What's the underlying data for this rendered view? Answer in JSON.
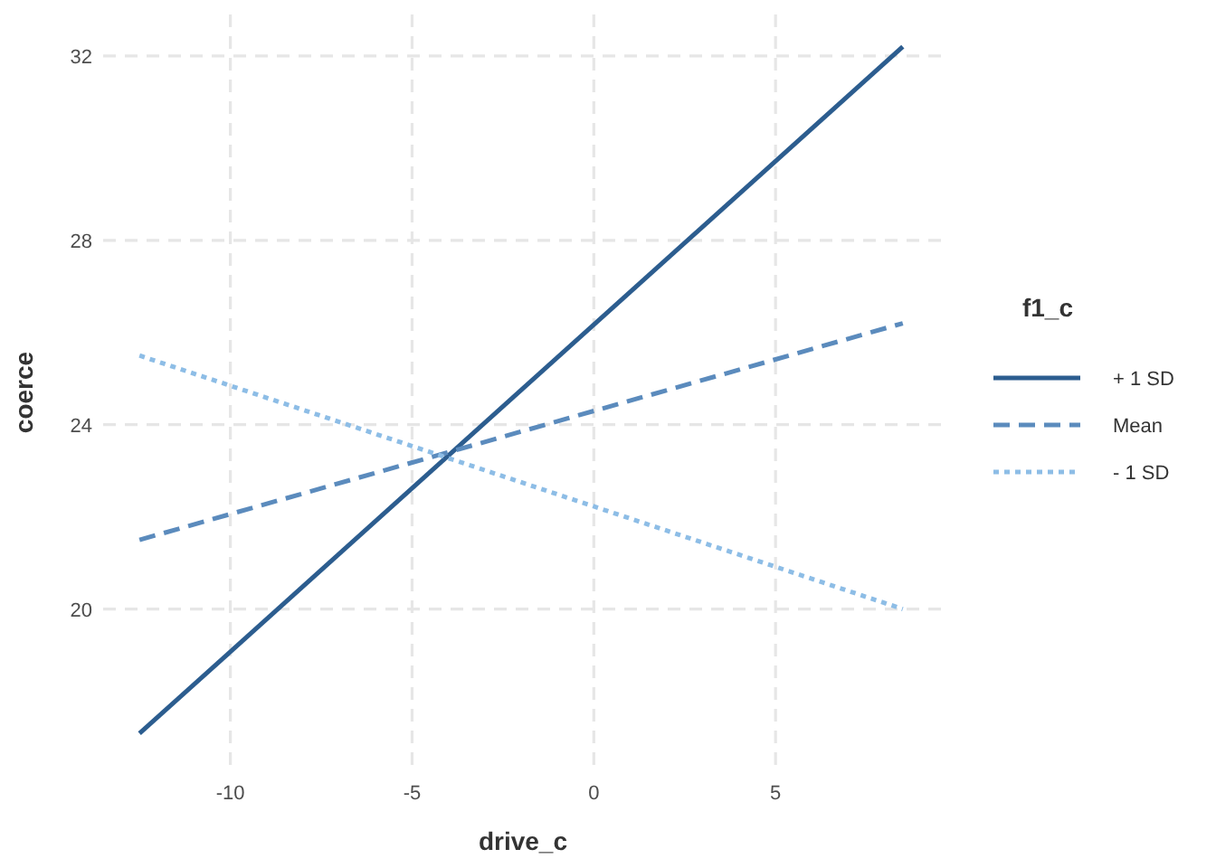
{
  "chart_data": {
    "type": "line",
    "xlabel": "drive_c",
    "ylabel": "coerce",
    "legend_title": "f1_c",
    "legend": "right",
    "grid": true,
    "marker": "none",
    "xlim": [
      -13.5,
      9.6
    ],
    "ylim": [
      16.5,
      32.9
    ],
    "xticks": [
      -10,
      -5,
      0,
      5
    ],
    "yticks": [
      20,
      24,
      28,
      32
    ],
    "x": [
      -12.5,
      8.5
    ],
    "series": [
      {
        "name": "+ 1 SD",
        "color": "#2c5d8f",
        "line_style": "solid",
        "values": [
          17.3,
          32.2
        ]
      },
      {
        "name": "Mean",
        "color": "#5b8bbd",
        "line_style": "dashed",
        "values": [
          21.5,
          26.2
        ]
      },
      {
        "name": "- 1 SD",
        "color": "#8dbde6",
        "line_style": "dotted",
        "values": [
          25.5,
          20.0
        ]
      }
    ]
  }
}
